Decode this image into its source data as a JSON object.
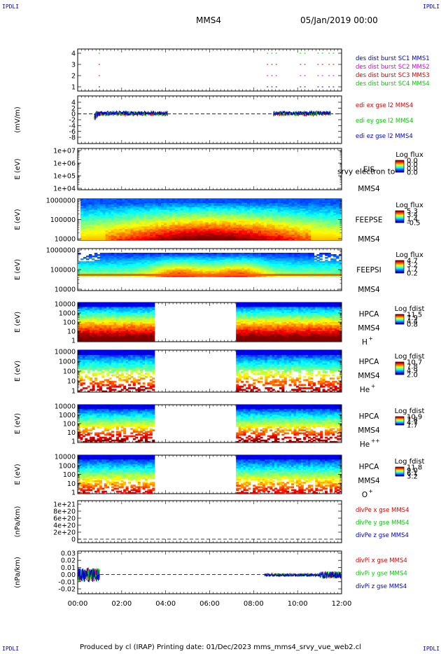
{
  "header": {
    "corner_label": "IPDLI",
    "mission": "MMS4",
    "date": "05/Jan/2019 00:00"
  },
  "footer": {
    "text": "Produced by cl (IRAP)   Printing date: 01/Dec/2023   mms_mms4_srvy_vue_web2.cl"
  },
  "x_axis": {
    "ticks": [
      "00:00",
      "02:00",
      "04:00",
      "06:00",
      "08:00",
      "10:00",
      "12:00"
    ]
  },
  "colors": {
    "red": "#dd0000",
    "green": "#00cc00",
    "blue": "#0000cc",
    "magenta": "#dd00dd"
  },
  "panels": [
    {
      "id": "burst",
      "ylabel": "",
      "yticks": [
        "4",
        "3",
        "2",
        "1"
      ],
      "legend": [
        {
          "text": "des dist burst SC1 MMS1",
          "color": "blue"
        },
        {
          "text": "des dist burst SC2 MMS2",
          "color": "magenta"
        },
        {
          "text": "des dist burst SC3 MMS3",
          "color": "red"
        },
        {
          "text": "des dist burst SC4 MMS4",
          "color": "green"
        }
      ]
    },
    {
      "id": "edi",
      "ylabel": "(mV/m)",
      "yticks": [
        "4",
        "2",
        "0",
        "-2",
        "-4",
        "-6",
        "-8"
      ],
      "legend": [
        {
          "text": "edi ex gse l2 MMS4",
          "color": "red"
        },
        {
          "text": "edi ey gse l2 MMS4",
          "color": "green"
        },
        {
          "text": "edi ez gse l2 MMS4",
          "color": "blue"
        }
      ]
    },
    {
      "id": "eis",
      "ylabel": "E (eV)",
      "yticks": [
        "1e+07",
        "1e+06",
        "1e+05",
        "1e+04"
      ],
      "instrument": "EIS",
      "overlay": "srvy electron to",
      "sc": "MMS4",
      "cb_title": "Log flux",
      "cb_ticks": [
        "0.0",
        "0.0",
        "0.0",
        "0.0"
      ]
    },
    {
      "id": "feepse",
      "ylabel": "E (eV)",
      "yticks": [
        "1000000",
        "100000",
        "10000"
      ],
      "instrument": "FEEPSE",
      "sc": "MMS4",
      "cb_title": "Log flux",
      "cb_ticks": [
        "5.3",
        "3.4",
        "1.4",
        "-0.5"
      ]
    },
    {
      "id": "feepsi",
      "ylabel": "E (eV)",
      "yticks": [
        "1000000",
        "100000",
        "10000"
      ],
      "instrument": "FEEPSI",
      "sc": "MMS4",
      "cb_title": "Log flux",
      "cb_ticks": [
        "4.7",
        "3.2",
        "1.7",
        "0.2"
      ]
    },
    {
      "id": "hpca_h",
      "ylabel": "E (eV)",
      "yticks": [
        "10000",
        "1000",
        "100",
        "10",
        "1"
      ],
      "instrument": "HPCA",
      "sc": "MMS4",
      "species": "H",
      "species_sup": "+",
      "cb_title": "Log fdist",
      "cb_ticks": [
        "11.5",
        "7.9",
        "4.4",
        "0.8"
      ]
    },
    {
      "id": "hpca_he",
      "ylabel": "E (eV)",
      "yticks": [
        "10000",
        "1000",
        "100",
        "10",
        "1"
      ],
      "instrument": "HPCA",
      "sc": "MMS4",
      "species": "He",
      "species_sup": "+",
      "cb_title": "Log fdist",
      "cb_ticks": [
        "10.7",
        "7.8",
        "4.9",
        "2.0"
      ]
    },
    {
      "id": "hpca_hepp",
      "ylabel": "E (eV)",
      "yticks": [
        "10000",
        "1000",
        "100",
        "10",
        "1"
      ],
      "instrument": "HPCA",
      "sc": "MMS4",
      "species": "He",
      "species_sup": "++",
      "cb_title": "Log fdist",
      "cb_ticks": [
        "10.9",
        "7.8",
        "4.7",
        "1.7"
      ]
    },
    {
      "id": "hpca_o",
      "ylabel": "E (eV)",
      "yticks": [
        "10000",
        "1000",
        "100",
        "10",
        "1"
      ],
      "instrument": "HPCA",
      "sc": "MMS4",
      "species": "O",
      "species_sup": "+",
      "cb_title": "Log fdist",
      "cb_ticks": [
        "11.8",
        "9.0",
        "6.1",
        "3.2"
      ]
    },
    {
      "id": "divpe",
      "ylabel": "(nPa/km)",
      "yticks": [
        "1e+21",
        "8e+20",
        "6e+20",
        "4e+20",
        "2e+20",
        "0"
      ],
      "legend": [
        {
          "text": "divPe x gse MMS4",
          "color": "red"
        },
        {
          "text": "divPe y gse MMS4",
          "color": "green"
        },
        {
          "text": "divPe z gse MMS4",
          "color": "blue"
        }
      ]
    },
    {
      "id": "divpi",
      "ylabel": "(nPa/km)",
      "yticks": [
        "0.03",
        "0.02",
        "0.01",
        "0.00",
        "-0.01",
        "-0.02"
      ],
      "legend": [
        {
          "text": "divPi x gse MMS4",
          "color": "red"
        },
        {
          "text": "divPi y gse MMS4",
          "color": "green"
        },
        {
          "text": "divPi z gse MMS4",
          "color": "blue"
        }
      ]
    }
  ],
  "chart_data": {
    "type": "heatmap",
    "x_range_hours": [
      0,
      12
    ],
    "burst_intervals": [
      {
        "sc": 4,
        "color": "green",
        "hours": [
          0.95,
          8.6,
          8.8,
          9.0,
          10.1,
          10.3,
          10.9,
          11.1,
          11.4,
          11.6
        ]
      },
      {
        "sc": 3,
        "color": "red",
        "hours": [
          0.95,
          8.6,
          8.8,
          9.0,
          10.1,
          10.3,
          10.9,
          11.1,
          11.4,
          11.6
        ]
      },
      {
        "sc": 2,
        "color": "magenta",
        "hours": [
          0.95,
          8.6,
          8.8,
          9.0,
          10.1,
          10.3,
          10.9,
          11.1,
          11.4,
          11.6
        ]
      },
      {
        "sc": 1,
        "color": "blue",
        "hours": [
          0.95,
          8.6,
          8.8,
          9.0,
          10.1,
          10.3,
          10.9,
          11.1,
          11.4,
          11.6
        ]
      }
    ],
    "edi_coverage_hours": [
      [
        0.75,
        4.1
      ],
      [
        8.9,
        11.5
      ]
    ],
    "hpca_gap_hours": [
      3.45,
      7.2
    ],
    "divpi_coverage_hours": [
      [
        0.0,
        1.0
      ],
      [
        8.5,
        12.0
      ]
    ]
  }
}
